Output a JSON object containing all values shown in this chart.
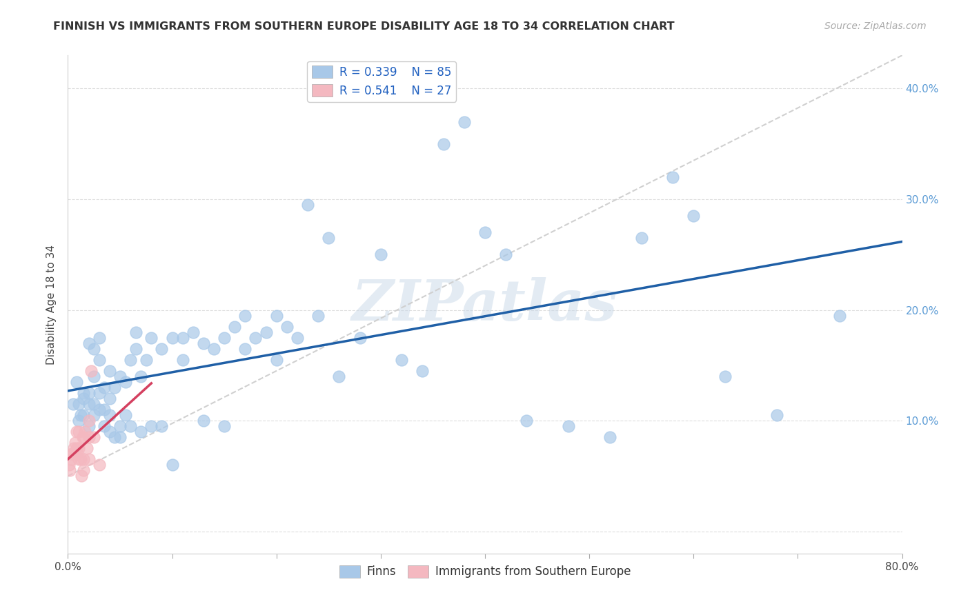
{
  "title": "FINNISH VS IMMIGRANTS FROM SOUTHERN EUROPE DISABILITY AGE 18 TO 34 CORRELATION CHART",
  "source_text": "Source: ZipAtlas.com",
  "ylabel": "Disability Age 18 to 34",
  "xlim": [
    0.0,
    0.8
  ],
  "ylim": [
    -0.02,
    0.43
  ],
  "xticks": [
    0.0,
    0.1,
    0.2,
    0.3,
    0.4,
    0.5,
    0.6,
    0.7,
    0.8
  ],
  "xticklabels": [
    "0.0%",
    "",
    "",
    "",
    "",
    "",
    "",
    "",
    "80.0%"
  ],
  "yticks": [
    0.0,
    0.1,
    0.2,
    0.3,
    0.4
  ],
  "yticklabels": [
    "",
    "10.0%",
    "20.0%",
    "30.0%",
    "40.0%"
  ],
  "grid_color": "#dddddd",
  "background_color": "#ffffff",
  "watermark_text": "ZIPatlas",
  "legend_line1": "R = 0.339    N = 85",
  "legend_line2": "R = 0.541    N = 27",
  "legend_label1": "Finns",
  "legend_label2": "Immigrants from Southern Europe",
  "color_finns": "#a8c8e8",
  "color_immigrants": "#f4b8c0",
  "color_trendline_finns": "#1f5fa6",
  "color_trendline_immigrants": "#d44060",
  "color_trendline_dashed": "#d0d0d0",
  "finns_x": [
    0.005,
    0.008,
    0.01,
    0.01,
    0.012,
    0.015,
    0.015,
    0.015,
    0.02,
    0.02,
    0.02,
    0.02,
    0.025,
    0.025,
    0.025,
    0.025,
    0.03,
    0.03,
    0.03,
    0.03,
    0.035,
    0.035,
    0.035,
    0.04,
    0.04,
    0.04,
    0.04,
    0.045,
    0.045,
    0.05,
    0.05,
    0.05,
    0.055,
    0.055,
    0.06,
    0.06,
    0.065,
    0.065,
    0.07,
    0.07,
    0.075,
    0.08,
    0.08,
    0.09,
    0.09,
    0.1,
    0.1,
    0.11,
    0.11,
    0.12,
    0.13,
    0.13,
    0.14,
    0.15,
    0.15,
    0.16,
    0.17,
    0.17,
    0.18,
    0.19,
    0.2,
    0.2,
    0.21,
    0.22,
    0.23,
    0.24,
    0.25,
    0.26,
    0.28,
    0.3,
    0.32,
    0.34,
    0.36,
    0.38,
    0.4,
    0.42,
    0.44,
    0.48,
    0.52,
    0.55,
    0.58,
    0.6,
    0.63,
    0.68,
    0.74
  ],
  "finns_y": [
    0.115,
    0.135,
    0.115,
    0.1,
    0.105,
    0.12,
    0.105,
    0.125,
    0.095,
    0.115,
    0.125,
    0.17,
    0.105,
    0.115,
    0.14,
    0.165,
    0.11,
    0.125,
    0.155,
    0.175,
    0.095,
    0.11,
    0.13,
    0.09,
    0.105,
    0.12,
    0.145,
    0.085,
    0.13,
    0.085,
    0.095,
    0.14,
    0.105,
    0.135,
    0.095,
    0.155,
    0.165,
    0.18,
    0.09,
    0.14,
    0.155,
    0.095,
    0.175,
    0.095,
    0.165,
    0.06,
    0.175,
    0.155,
    0.175,
    0.18,
    0.1,
    0.17,
    0.165,
    0.095,
    0.175,
    0.185,
    0.165,
    0.195,
    0.175,
    0.18,
    0.155,
    0.195,
    0.185,
    0.175,
    0.295,
    0.195,
    0.265,
    0.14,
    0.175,
    0.25,
    0.155,
    0.145,
    0.35,
    0.37,
    0.27,
    0.25,
    0.1,
    0.095,
    0.085,
    0.265,
    0.32,
    0.285,
    0.14,
    0.105,
    0.195
  ],
  "immigrants_x": [
    0.001,
    0.002,
    0.003,
    0.004,
    0.005,
    0.006,
    0.007,
    0.008,
    0.008,
    0.009,
    0.01,
    0.01,
    0.01,
    0.012,
    0.013,
    0.014,
    0.015,
    0.015,
    0.015,
    0.016,
    0.018,
    0.02,
    0.02,
    0.02,
    0.022,
    0.025,
    0.03
  ],
  "immigrants_y": [
    0.06,
    0.055,
    0.065,
    0.07,
    0.07,
    0.075,
    0.08,
    0.075,
    0.09,
    0.07,
    0.065,
    0.075,
    0.09,
    0.065,
    0.05,
    0.085,
    0.055,
    0.065,
    0.085,
    0.09,
    0.075,
    0.065,
    0.085,
    0.1,
    0.145,
    0.085,
    0.06
  ]
}
